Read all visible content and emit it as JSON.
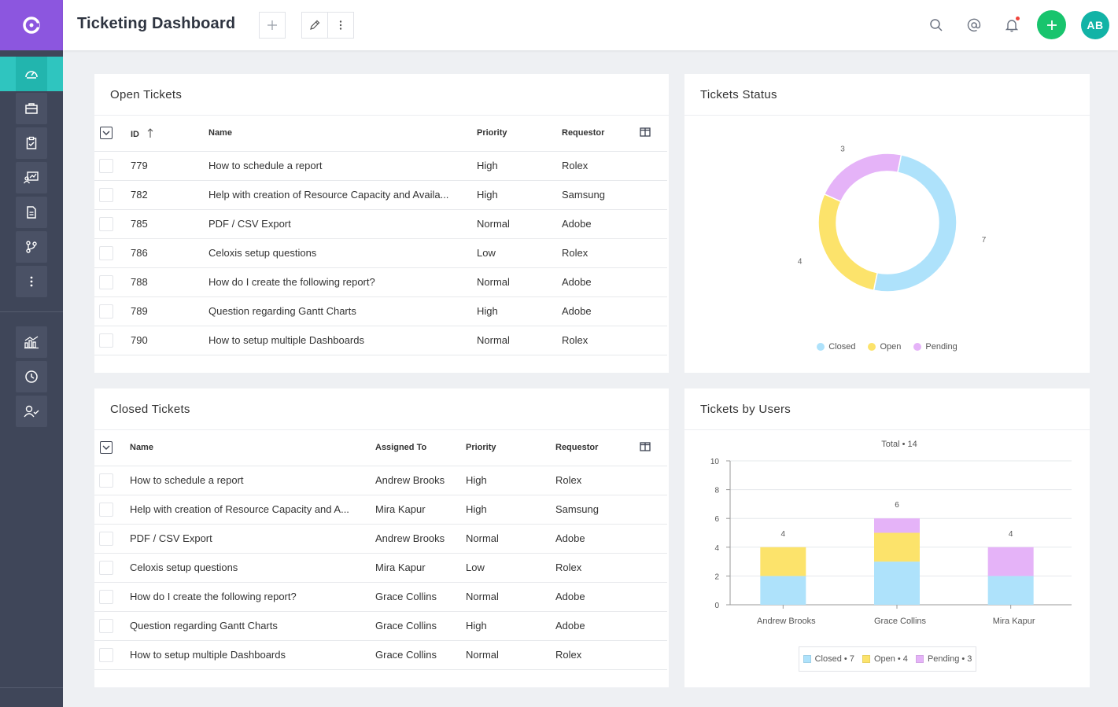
{
  "header": {
    "title": "Ticketing Dashboard",
    "avatar_initials": "AB"
  },
  "colors": {
    "brand": "#8c56df",
    "sidebar": "#3f4659",
    "active": "#2fc5bf",
    "add_button": "#18c46d",
    "avatar": "#12b3a6",
    "closed": "#aee2fb",
    "open": "#fce36b",
    "pending": "#e5b3f8"
  },
  "sidebar": {
    "items": [
      {
        "icon": "dashboard-icon"
      },
      {
        "icon": "briefcase-icon"
      },
      {
        "icon": "clipboard-check-icon"
      },
      {
        "icon": "resource-chart-icon"
      },
      {
        "icon": "document-icon"
      },
      {
        "icon": "branch-icon"
      },
      {
        "icon": "more-vertical-icon"
      },
      {
        "icon": "analytics-icon"
      },
      {
        "icon": "clock-icon"
      },
      {
        "icon": "user-check-icon"
      }
    ]
  },
  "open_tickets": {
    "title": "Open Tickets",
    "columns": {
      "id": "ID",
      "name": "Name",
      "priority": "Priority",
      "requestor": "Requestor"
    },
    "rows": [
      {
        "id": "779",
        "name": "How to schedule a report",
        "priority": "High",
        "requestor": "Rolex"
      },
      {
        "id": "782",
        "name": "Help with creation of Resource Capacity and Availa...",
        "priority": "High",
        "requestor": "Samsung"
      },
      {
        "id": "785",
        "name": "PDF / CSV Export",
        "priority": "Normal",
        "requestor": "Adobe"
      },
      {
        "id": "786",
        "name": "Celoxis setup questions",
        "priority": "Low",
        "requestor": "Rolex"
      },
      {
        "id": "788",
        "name": "How do I create the following report?",
        "priority": "Normal",
        "requestor": "Adobe"
      },
      {
        "id": "789",
        "name": "Question regarding Gantt Charts",
        "priority": "High",
        "requestor": "Adobe"
      },
      {
        "id": "790",
        "name": "How to setup multiple Dashboards",
        "priority": "Normal",
        "requestor": "Rolex"
      }
    ]
  },
  "closed_tickets": {
    "title": "Closed Tickets",
    "columns": {
      "name": "Name",
      "assigned": "Assigned To",
      "priority": "Priority",
      "requestor": "Requestor"
    },
    "rows": [
      {
        "name": "How to schedule a report",
        "assigned": "Andrew Brooks",
        "priority": "High",
        "requestor": "Rolex"
      },
      {
        "name": "Help with creation of Resource Capacity and A...",
        "assigned": "Mira Kapur",
        "priority": "High",
        "requestor": "Samsung"
      },
      {
        "name": "PDF / CSV Export",
        "assigned": "Andrew Brooks",
        "priority": "Normal",
        "requestor": "Adobe"
      },
      {
        "name": "Celoxis setup questions",
        "assigned": "Mira Kapur",
        "priority": "Low",
        "requestor": "Rolex"
      },
      {
        "name": "How do I create the following report?",
        "assigned": "Grace Collins",
        "priority": "Normal",
        "requestor": "Adobe"
      },
      {
        "name": "Question regarding Gantt Charts",
        "assigned": "Grace Collins",
        "priority": "High",
        "requestor": "Adobe"
      },
      {
        "name": "How to setup multiple Dashboards",
        "assigned": "Grace Collins",
        "priority": "Normal",
        "requestor": "Rolex"
      }
    ]
  },
  "tickets_status": {
    "title": "Tickets Status",
    "legend": [
      "Closed",
      "Open",
      "Pending"
    ]
  },
  "tickets_by_users": {
    "title": "Tickets by Users",
    "total_label": "Total • 14",
    "legend": [
      "Closed • 7",
      "Open • 4",
      "Pending • 3"
    ]
  },
  "chart_data": [
    {
      "type": "pie",
      "title": "Tickets Status",
      "categories": [
        "Closed",
        "Open",
        "Pending"
      ],
      "values": [
        7,
        4,
        3
      ],
      "donut": true,
      "legend_position": "bottom"
    },
    {
      "type": "bar",
      "stacked": true,
      "title": "Tickets by Users",
      "subtitle": "Total • 14",
      "categories": [
        "Andrew Brooks",
        "Grace Collins",
        "Mira Kapur"
      ],
      "series": [
        {
          "name": "Closed",
          "values": [
            2,
            3,
            2
          ]
        },
        {
          "name": "Open",
          "values": [
            2,
            2,
            0
          ]
        },
        {
          "name": "Pending",
          "values": [
            0,
            1,
            2
          ]
        }
      ],
      "totals": [
        4,
        6,
        4
      ],
      "y_ticks": [
        "0",
        "2",
        "4",
        "6",
        "8",
        "10"
      ],
      "ylim": [
        0,
        10
      ],
      "grid": true,
      "legend_position": "bottom"
    }
  ]
}
